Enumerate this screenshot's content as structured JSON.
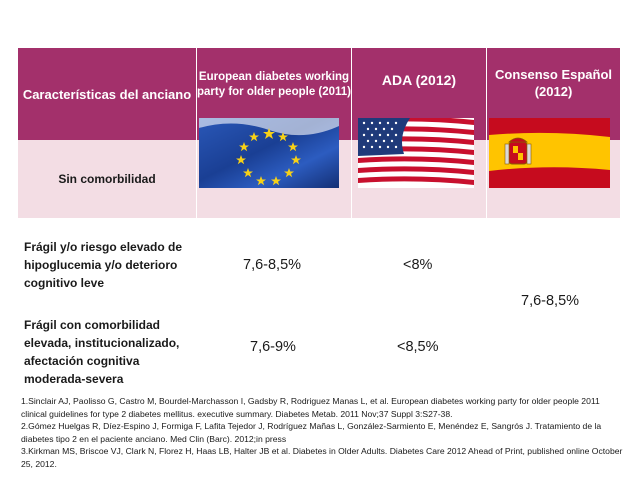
{
  "header": {
    "col0": "Características del anciano",
    "col1": "European diabetes working party for older people (2011)",
    "col2": "ADA (2012)",
    "col3": "Consenso Español (2012)"
  },
  "colors": {
    "header_bg": "#a3306b",
    "row_bg": "#f3dde4"
  },
  "flags": [
    "eu-flag-icon",
    "us-flag-icon",
    "spain-flag-icon"
  ],
  "rows": [
    {
      "label": "Sin comorbilidad",
      "c1": "",
      "c2": "",
      "c3": ""
    },
    {
      "label": "Frágil y/o riesgo elevado de hipoglucemia y/o deterioro cognitivo leve",
      "c1": "7,6-8,5%",
      "c2": "<8%"
    },
    {
      "label": "Frágil con comorbilidad elevada, institucionalizado, afectación cognitiva moderada-severa",
      "c1": "7,6-9%",
      "c2": "<8,5%"
    }
  ],
  "merged_c3": "7,6-8,5%",
  "references": [
    "1.Sinclair AJ, Paolisso G, Castro M, Bourdel-Marchasson I, Gadsby R, Rodriguez Manas L, et al. European diabetes working party for older people 2011 clinical guidelines for type 2 diabetes mellitus. executive summary. Diabetes Metab. 2011 Nov;37 Suppl 3:S27-38.",
    "2.Gómez Huelgas R, Díez-Espino J, Formiga F, Lafita Tejedor J, Rodríguez Mañas L, González-Sarmiento E, Menéndez E, Sangrós J. Tratamiento de la diabetes tipo 2 en el paciente anciano. Med Clin (Barc). 2012;in press",
    "3.Kirkman MS, Briscoe VJ, Clark N, Florez H, Haas LB, Halter JB et al. Diabetes in Older Adults. Diabetes Care 2012 Ahead of Print, published online October 25, 2012."
  ]
}
